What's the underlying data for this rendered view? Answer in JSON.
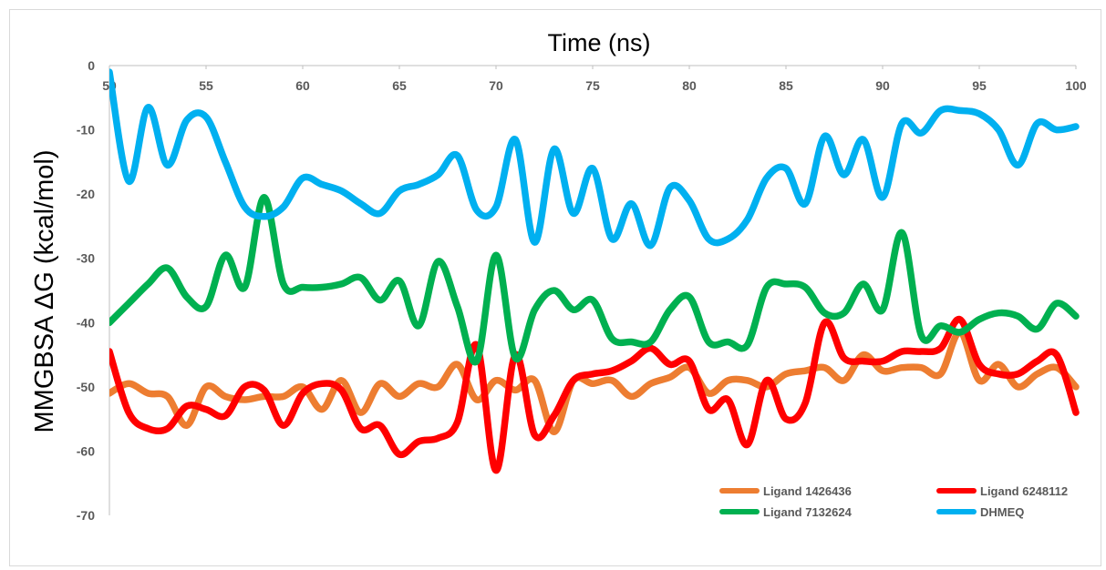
{
  "chart_data": {
    "type": "line",
    "xlabel": "Time (ns)",
    "ylabel": "MMGBSA ΔG (kcal/mol)",
    "xlim": [
      50,
      100
    ],
    "ylim": [
      -70,
      0
    ],
    "x_ticks": [
      50,
      55,
      60,
      65,
      70,
      75,
      80,
      85,
      90,
      95,
      100
    ],
    "y_ticks": [
      0,
      -10,
      -20,
      -30,
      -40,
      -50,
      -60,
      -70
    ],
    "grid": false,
    "x_axis_position": "top",
    "legend_position": "bottom-right",
    "series": [
      {
        "name": "Ligand 1426436",
        "color": "#ED7D31",
        "x": [
          50,
          51,
          52,
          53,
          54,
          55,
          56,
          57,
          58,
          59,
          60,
          61,
          62,
          63,
          64,
          65,
          66,
          67,
          68,
          69,
          70,
          71,
          72,
          73,
          74,
          75,
          76,
          77,
          78,
          79,
          80,
          81,
          82,
          83,
          84,
          85,
          86,
          87,
          88,
          89,
          90,
          91,
          92,
          93,
          94,
          95,
          96,
          97,
          98,
          99,
          100
        ],
        "values": [
          -51,
          -49.5,
          -51,
          -51.5,
          -56,
          -50,
          -51.5,
          -52,
          -51.5,
          -51.5,
          -50,
          -53.5,
          -49,
          -54,
          -49.5,
          -51.5,
          -49.5,
          -50,
          -46.5,
          -52,
          -49,
          -50.5,
          -49,
          -57,
          -49,
          -49.5,
          -49,
          -51.5,
          -49.5,
          -48.5,
          -47,
          -51,
          -49,
          -49,
          -50,
          -48,
          -47.5,
          -47,
          -49,
          -45,
          -47.5,
          -47,
          -47,
          -48,
          -41.5,
          -49,
          -46.5,
          -50,
          -48,
          -47,
          -50
        ]
      },
      {
        "name": "Ligand 6248112",
        "color": "#FF0000",
        "x": [
          50,
          51,
          52,
          53,
          54,
          55,
          56,
          57,
          58,
          59,
          60,
          61,
          62,
          63,
          64,
          65,
          66,
          67,
          68,
          69,
          70,
          71,
          72,
          73,
          74,
          75,
          76,
          77,
          78,
          79,
          80,
          81,
          82,
          83,
          84,
          85,
          86,
          87,
          88,
          89,
          90,
          91,
          92,
          93,
          94,
          95,
          96,
          97,
          98,
          99,
          100
        ],
        "values": [
          -44.5,
          -54,
          -56.5,
          -56.5,
          -53,
          -53.5,
          -54.5,
          -50,
          -50.5,
          -56,
          -51,
          -49.5,
          -50.5,
          -56.5,
          -56,
          -60.5,
          -58.5,
          -58,
          -55.5,
          -43.5,
          -63,
          -45,
          -57.5,
          -54.5,
          -49,
          -48,
          -47.5,
          -46,
          -44,
          -46.5,
          -46,
          -53.5,
          -52,
          -59,
          -49,
          -55,
          -52.5,
          -40,
          -45.5,
          -46,
          -46,
          -44.5,
          -44.5,
          -44,
          -39.5,
          -46.5,
          -48,
          -48,
          -46,
          -45,
          -54
        ]
      },
      {
        "name": "Ligand 7132624",
        "color": "#00B050",
        "x": [
          50,
          51,
          52,
          53,
          54,
          55,
          56,
          57,
          58,
          59,
          60,
          61,
          62,
          63,
          64,
          65,
          66,
          67,
          68,
          69,
          70,
          71,
          72,
          73,
          74,
          75,
          76,
          77,
          78,
          79,
          80,
          81,
          82,
          83,
          84,
          85,
          86,
          87,
          88,
          89,
          90,
          91,
          92,
          93,
          94,
          95,
          96,
          97,
          98,
          99,
          100
        ],
        "values": [
          -40,
          -37,
          -34,
          -31.5,
          -36,
          -37.5,
          -29.5,
          -34.5,
          -20.5,
          -34,
          -34.5,
          -34.5,
          -34,
          -33,
          -36.5,
          -33.5,
          -40.5,
          -30.5,
          -37.5,
          -46,
          -29.5,
          -45.5,
          -38,
          -35,
          -38,
          -36.5,
          -42.5,
          -43,
          -43,
          -38,
          -36,
          -43,
          -43,
          -43.5,
          -34.5,
          -34,
          -34.5,
          -38.5,
          -38.5,
          -34,
          -38,
          -26,
          -42,
          -40.5,
          -41.5,
          -39.5,
          -38.5,
          -39,
          -41,
          -37,
          -39
        ]
      },
      {
        "name": "DHMEQ",
        "color": "#00B0F0",
        "x": [
          50,
          51,
          52,
          53,
          54,
          55,
          56,
          57,
          58,
          59,
          60,
          61,
          62,
          63,
          64,
          65,
          66,
          67,
          68,
          69,
          70,
          71,
          72,
          73,
          74,
          75,
          76,
          77,
          78,
          79,
          80,
          81,
          82,
          83,
          84,
          85,
          86,
          87,
          88,
          89,
          90,
          91,
          92,
          93,
          94,
          95,
          96,
          97,
          98,
          99,
          100
        ],
        "values": [
          -1,
          -18,
          -6.5,
          -15.5,
          -8.5,
          -8,
          -15,
          -22,
          -23.5,
          -22,
          -17.5,
          -18.5,
          -19.5,
          -21.5,
          -23,
          -19.5,
          -18.5,
          -17,
          -14,
          -22.5,
          -22,
          -11.5,
          -27.5,
          -13,
          -23,
          -16,
          -27,
          -21.5,
          -28,
          -19,
          -21,
          -27,
          -27,
          -24,
          -17.5,
          -16,
          -21.5,
          -11,
          -17,
          -11.5,
          -20.5,
          -9,
          -10.5,
          -7,
          -7,
          -7.5,
          -10,
          -15.5,
          -9,
          -10,
          -9.5
        ]
      }
    ]
  }
}
